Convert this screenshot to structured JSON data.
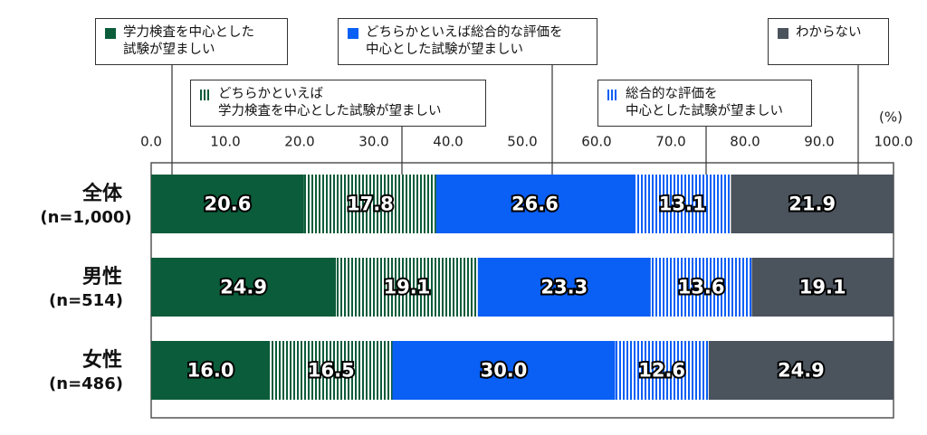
{
  "chart_data": {
    "type": "stacked-bar-horizontal",
    "categories": [
      "全体",
      "男性",
      "女性"
    ],
    "sample_sizes": [
      "(n=1,000)",
      "(n=514)",
      "(n=486)"
    ],
    "x_unit": "(%)",
    "xlim": [
      0,
      100
    ],
    "xticks": [
      {
        "value": 0,
        "label": "0.0"
      },
      {
        "value": 10,
        "label": "10.0"
      },
      {
        "value": 20,
        "label": "20.0"
      },
      {
        "value": 30,
        "label": "30.0"
      },
      {
        "value": 40,
        "label": "40.0"
      },
      {
        "value": 50,
        "label": "50.0"
      },
      {
        "value": 60,
        "label": "60.0"
      },
      {
        "value": 70,
        "label": "70.0"
      },
      {
        "value": 80,
        "label": "80.0"
      },
      {
        "value": 90,
        "label": "90.0"
      },
      {
        "value": 100,
        "label": "100.0"
      }
    ],
    "series": [
      {
        "name": "学力検査を中心とした\n試験が望ましい",
        "color": "#0b5c3a",
        "pattern": "solid",
        "values": [
          20.6,
          24.9,
          16.0
        ],
        "value_labels": [
          "20.6",
          "24.9",
          "16.0"
        ]
      },
      {
        "name": "どちらかといえば\n学力検査を中心とした試験が望ましい",
        "color": "#0b5c3a",
        "pattern": "vertical-stripes",
        "values": [
          17.8,
          19.1,
          16.5
        ],
        "value_labels": [
          "17.8",
          "19.1",
          "16.5"
        ]
      },
      {
        "name": "どちらかといえば総合的な評価を\n中心とした試験が望ましい",
        "color": "#0a5ff5",
        "pattern": "solid",
        "values": [
          26.6,
          23.3,
          30.0
        ],
        "value_labels": [
          "26.6",
          "23.3",
          "30.0"
        ]
      },
      {
        "name": "総合的な評価を\n中心とした試験が望ましい",
        "color": "#0a5ff5",
        "pattern": "vertical-stripes",
        "values": [
          13.1,
          13.6,
          12.6
        ],
        "value_labels": [
          "13.1",
          "13.6",
          "12.6"
        ]
      },
      {
        "name": "わからない",
        "color": "#4b535d",
        "pattern": "solid",
        "values": [
          21.9,
          19.1,
          24.9
        ],
        "value_labels": [
          "21.9",
          "19.1",
          "24.9"
        ]
      }
    ]
  }
}
